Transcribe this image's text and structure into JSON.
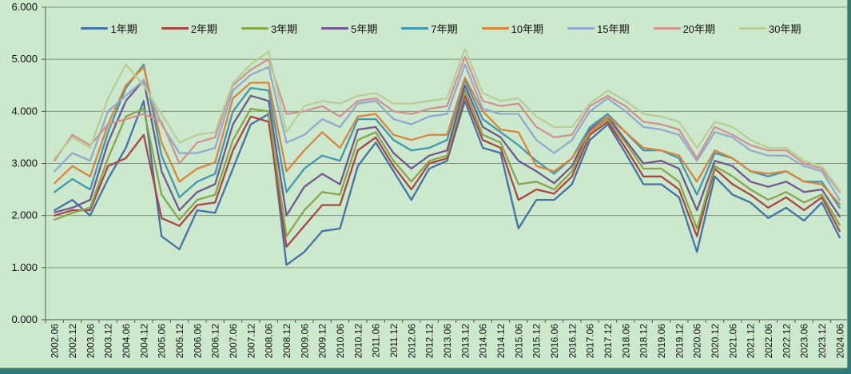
{
  "window": {
    "background_color": "#cde9cd",
    "edge_color": "#2e7b7b"
  },
  "chart_data": {
    "type": "line",
    "title": "",
    "xlabel": "",
    "ylabel": "",
    "ylim": [
      0,
      6
    ],
    "grid": true,
    "legend_position": "top-center",
    "gridline_color": "#7d917d",
    "axis_color": "#4f5a4f",
    "y_tick_labels": [
      "0.000",
      "1.000",
      "2.000",
      "3.000",
      "4.000",
      "5.000",
      "6.000"
    ],
    "x_labels": [
      "2002.06",
      "2002.12",
      "2003.06",
      "2003.12",
      "2004.06",
      "2004.12",
      "2005.06",
      "2005.12",
      "2006.06",
      "2006.12",
      "2007.06",
      "2007.12",
      "2008.06",
      "2008.12",
      "2009.06",
      "2009.12",
      "2010.06",
      "2010.12",
      "2011.06",
      "2011.12",
      "2012.06",
      "2012.12",
      "2013.06",
      "2013.12",
      "2014.06",
      "2014.12",
      "2015.06",
      "2015.12",
      "2016.06",
      "2016.12",
      "2017.06",
      "2017.12",
      "2018.06",
      "2018.12",
      "2019.06",
      "2019.12",
      "2020.06",
      "2020.12",
      "2021.06",
      "2021.12",
      "2022.06",
      "2022.12",
      "2023.06",
      "2023.12",
      "2024.06"
    ],
    "series": [
      {
        "name": "1年期",
        "color": "#4572A7",
        "values": [
          2.1,
          2.3,
          2.0,
          2.7,
          3.3,
          4.2,
          1.6,
          1.35,
          2.1,
          2.05,
          2.9,
          3.75,
          3.95,
          1.05,
          1.3,
          1.7,
          1.75,
          2.95,
          3.4,
          2.85,
          2.3,
          2.9,
          3.05,
          4.2,
          3.3,
          3.2,
          1.75,
          2.3,
          2.3,
          2.6,
          3.45,
          3.75,
          3.2,
          2.6,
          2.6,
          2.35,
          1.3,
          2.75,
          2.4,
          2.25,
          1.95,
          2.15,
          1.9,
          2.25,
          1.58
        ]
      },
      {
        "name": "2年期",
        "color": "#AA4643",
        "values": [
          2.0,
          2.1,
          2.1,
          2.95,
          3.1,
          3.55,
          1.95,
          1.8,
          2.2,
          2.25,
          3.25,
          3.9,
          3.8,
          1.4,
          1.8,
          2.2,
          2.2,
          3.25,
          3.5,
          2.95,
          2.5,
          3.0,
          3.1,
          4.3,
          3.45,
          3.3,
          2.3,
          2.5,
          2.42,
          2.75,
          3.55,
          3.8,
          3.3,
          2.75,
          2.75,
          2.5,
          1.6,
          2.9,
          2.6,
          2.4,
          2.15,
          2.35,
          2.1,
          2.35,
          1.7
        ]
      },
      {
        "name": "3年期",
        "color": "#89A54E",
        "values": [
          1.92,
          2.05,
          2.15,
          3.1,
          3.9,
          4.05,
          2.4,
          1.92,
          2.3,
          2.4,
          3.45,
          4.05,
          4.0,
          1.6,
          2.1,
          2.45,
          2.4,
          3.45,
          3.6,
          3.05,
          2.65,
          3.05,
          3.15,
          4.4,
          3.55,
          3.4,
          2.6,
          2.65,
          2.5,
          2.85,
          3.6,
          3.85,
          3.4,
          2.9,
          2.9,
          2.65,
          1.75,
          2.95,
          2.75,
          2.5,
          2.3,
          2.45,
          2.25,
          2.4,
          1.82
        ]
      },
      {
        "name": "5年期",
        "color": "#71588F",
        "values": [
          2.06,
          2.15,
          2.3,
          3.4,
          4.2,
          4.6,
          2.85,
          2.1,
          2.45,
          2.6,
          3.75,
          4.3,
          4.2,
          2.0,
          2.55,
          2.8,
          2.6,
          3.65,
          3.7,
          3.2,
          2.9,
          3.15,
          3.25,
          4.5,
          3.7,
          3.5,
          3.05,
          2.85,
          2.62,
          2.95,
          3.65,
          3.9,
          3.45,
          3.0,
          3.05,
          2.9,
          2.1,
          3.05,
          2.95,
          2.65,
          2.55,
          2.65,
          2.45,
          2.5,
          1.98
        ]
      },
      {
        "name": "7年期",
        "color": "#4198AF",
        "values": [
          2.45,
          2.7,
          2.5,
          3.6,
          4.45,
          4.9,
          3.15,
          2.35,
          2.65,
          2.8,
          4.0,
          4.45,
          4.4,
          2.45,
          2.9,
          3.15,
          3.05,
          3.85,
          3.85,
          3.45,
          3.25,
          3.3,
          3.45,
          4.6,
          3.85,
          3.6,
          3.35,
          3.05,
          2.8,
          3.1,
          3.7,
          3.95,
          3.6,
          3.25,
          3.25,
          3.1,
          2.4,
          3.2,
          3.1,
          2.85,
          2.75,
          2.85,
          2.65,
          2.65,
          2.15
        ]
      },
      {
        "name": "10年期",
        "color": "#DB843D",
        "values": [
          2.62,
          2.95,
          2.75,
          3.75,
          4.5,
          4.85,
          3.4,
          2.65,
          2.9,
          3.02,
          4.25,
          4.55,
          4.55,
          2.85,
          3.25,
          3.6,
          3.3,
          3.9,
          3.95,
          3.55,
          3.45,
          3.55,
          3.55,
          4.65,
          4.0,
          3.65,
          3.6,
          2.95,
          2.85,
          3.1,
          3.6,
          3.9,
          3.6,
          3.3,
          3.25,
          3.15,
          2.65,
          3.25,
          3.1,
          2.85,
          2.8,
          2.85,
          2.65,
          2.6,
          2.22
        ]
      },
      {
        "name": "15年期",
        "color": "#93A9CF",
        "values": [
          2.85,
          3.2,
          3.05,
          4.0,
          4.3,
          4.6,
          3.75,
          3.2,
          3.2,
          3.3,
          4.4,
          4.7,
          4.85,
          3.4,
          3.55,
          3.85,
          3.7,
          4.15,
          4.2,
          3.85,
          3.75,
          3.9,
          3.95,
          4.9,
          4.05,
          3.95,
          3.95,
          3.45,
          3.2,
          3.45,
          4.0,
          4.25,
          4.0,
          3.7,
          3.65,
          3.55,
          3.05,
          3.6,
          3.5,
          3.25,
          3.15,
          3.15,
          2.95,
          2.85,
          2.3
        ]
      },
      {
        "name": "20年期",
        "color": "#D19392",
        "values": [
          3.05,
          3.55,
          3.35,
          3.75,
          3.85,
          3.95,
          3.8,
          3.0,
          3.4,
          3.5,
          4.5,
          4.8,
          5.0,
          3.95,
          4.0,
          4.1,
          3.9,
          4.2,
          4.25,
          4.0,
          3.95,
          4.05,
          4.1,
          5.05,
          4.2,
          4.1,
          4.15,
          3.7,
          3.5,
          3.55,
          4.1,
          4.3,
          4.1,
          3.8,
          3.75,
          3.65,
          3.1,
          3.7,
          3.55,
          3.35,
          3.25,
          3.25,
          3.0,
          2.9,
          2.45
        ]
      },
      {
        "name": "30年期",
        "color": "#B9CD96",
        "values": [
          3.1,
          3.5,
          3.3,
          4.25,
          4.9,
          4.5,
          3.95,
          3.4,
          3.55,
          3.6,
          4.55,
          4.9,
          5.15,
          3.6,
          4.1,
          4.2,
          4.15,
          4.3,
          4.35,
          4.15,
          4.15,
          4.2,
          4.25,
          5.2,
          4.35,
          4.2,
          4.25,
          3.9,
          3.7,
          3.7,
          4.15,
          4.4,
          4.2,
          3.95,
          3.9,
          3.8,
          3.3,
          3.8,
          3.7,
          3.45,
          3.3,
          3.3,
          3.05,
          2.95,
          2.48
        ]
      }
    ]
  }
}
